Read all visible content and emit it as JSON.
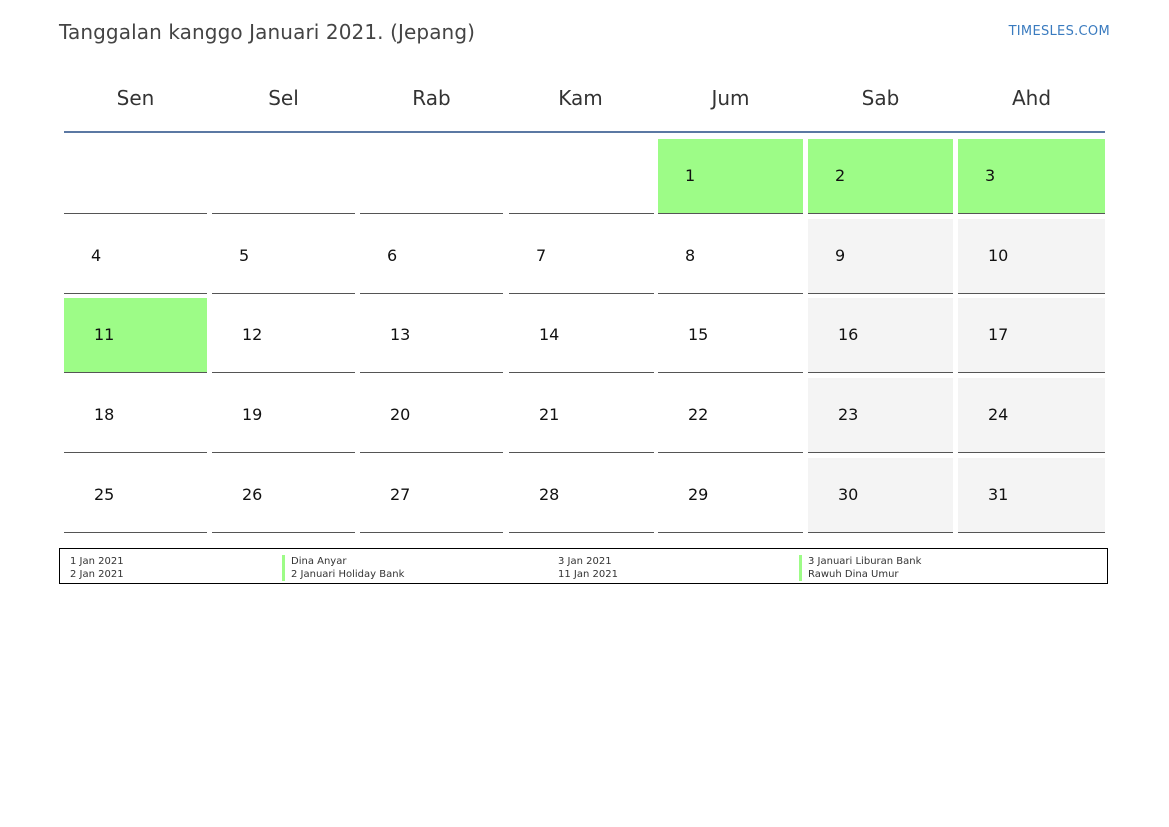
{
  "header": {
    "title": "Tanggalan kanggo Januari 2021. (Jepang)",
    "brand": "TIMESLES.COM"
  },
  "calendar": {
    "weekdays": [
      "Sen",
      "Sel",
      "Rab",
      "Kam",
      "Jum",
      "Sab",
      "Ahd"
    ],
    "weeks": [
      [
        "",
        "",
        "",
        "",
        "1",
        "2",
        "3"
      ],
      [
        "4",
        "5",
        "6",
        "7",
        "8",
        "9",
        "10"
      ],
      [
        "11",
        "12",
        "13",
        "14",
        "15",
        "16",
        "17"
      ],
      [
        "18",
        "19",
        "20",
        "21",
        "22",
        "23",
        "24"
      ],
      [
        "25",
        "26",
        "27",
        "28",
        "29",
        "30",
        "31"
      ]
    ],
    "holidays": [
      "1",
      "2",
      "3",
      "11"
    ],
    "colors": {
      "holiday": "#9dfc87",
      "weekend": "#f4f4f4",
      "rule": "#5b78a3"
    }
  },
  "legend": [
    {
      "date": "1 Jan 2021",
      "name": "Dina Anyar"
    },
    {
      "date": "2 Jan 2021",
      "name": "2 Januari Holiday Bank"
    },
    {
      "date": "3 Jan 2021",
      "name": "3 Januari Liburan Bank"
    },
    {
      "date": "11 Jan 2021",
      "name": "Rawuh Dina Umur"
    }
  ]
}
